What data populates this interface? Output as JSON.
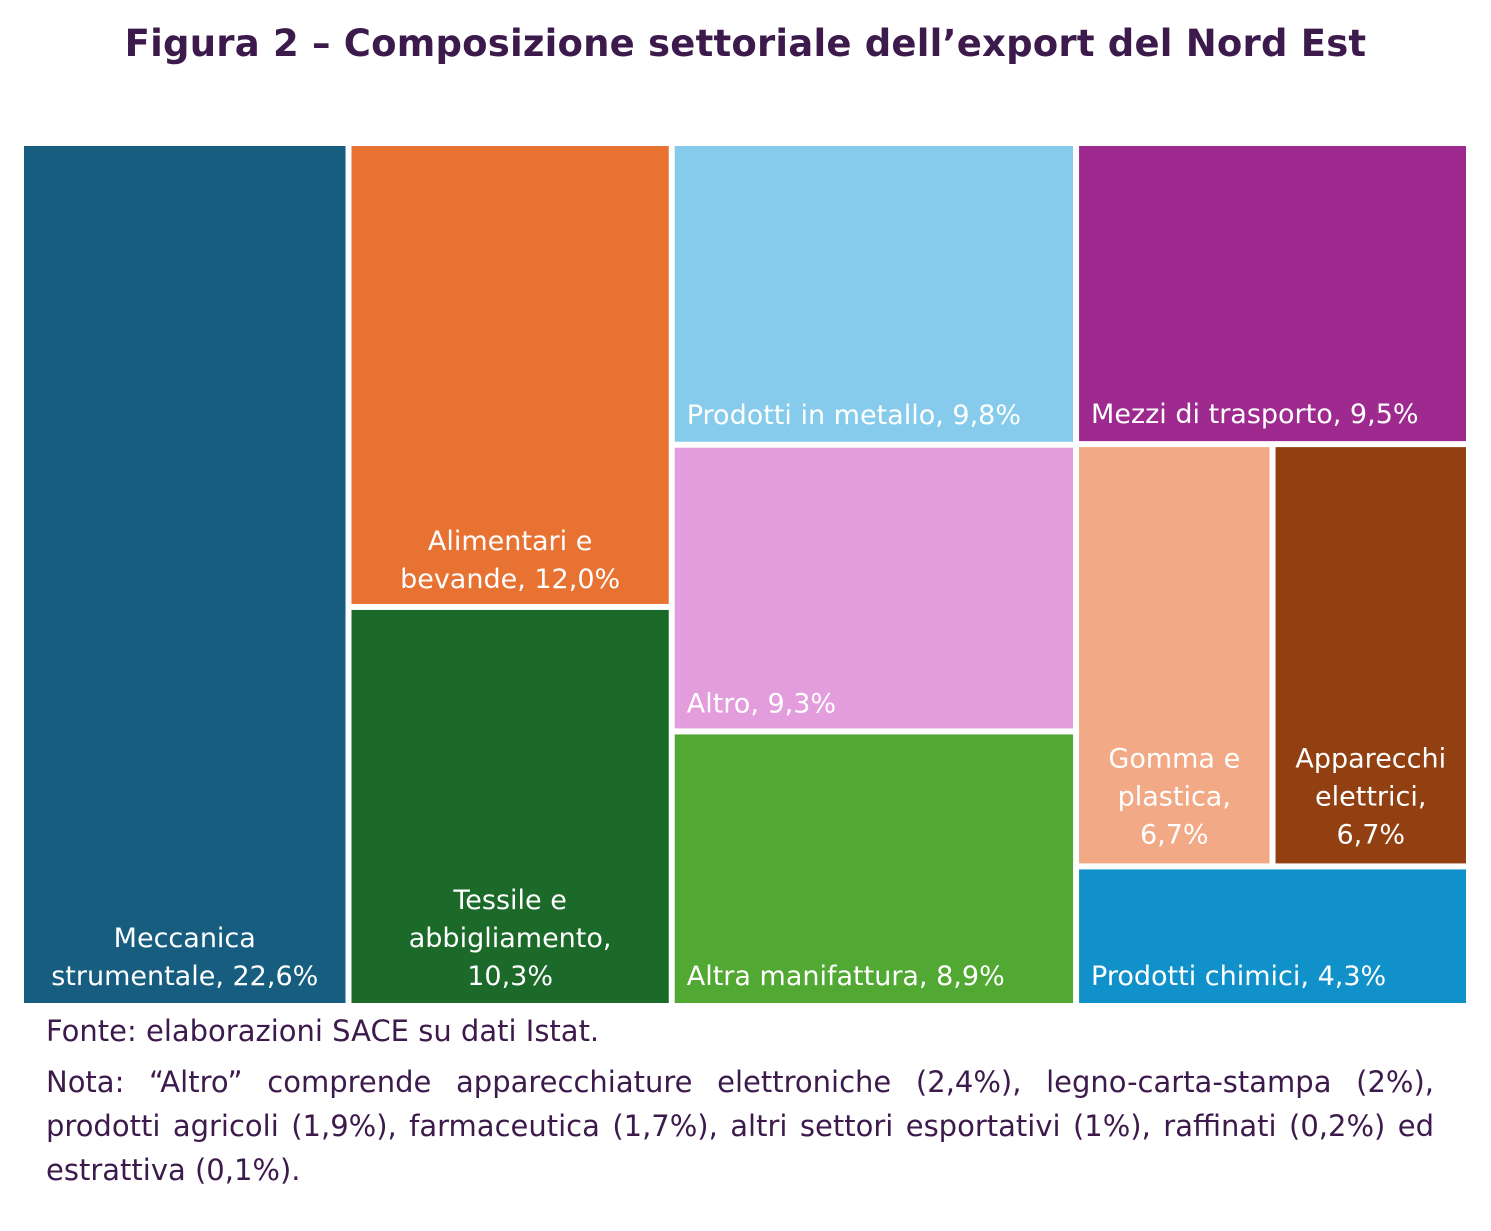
{
  "title": "Figura 2 – Composizione settoriale dell’export del Nord Est",
  "chart_data": {
    "type": "treemap",
    "title": "Figura 2 – Composizione settoriale dell’export del Nord Est",
    "unit": "%",
    "items": [
      {
        "name": "Meccanica strumentale",
        "value": 22.6,
        "label": [
          "Meccanica",
          "strumentale, 22,6%"
        ],
        "color": "#175d80"
      },
      {
        "name": "Alimentari e bevande",
        "value": 12.0,
        "label": [
          "Alimentari e",
          "bevande, 12,0%"
        ],
        "color": "#e87232"
      },
      {
        "name": "Tessile e abbigliamento",
        "value": 10.3,
        "label": [
          "Tessile e",
          "abbigliamento,",
          "10,3%"
        ],
        "color": "#1b6a2a"
      },
      {
        "name": "Prodotti in metallo",
        "value": 9.8,
        "label": [
          "Prodotti in metallo, 9,8%"
        ],
        "color": "#86cbeb"
      },
      {
        "name": "Altro",
        "value": 9.3,
        "label": [
          "Altro, 9,3%"
        ],
        "color": "#e39cdc"
      },
      {
        "name": "Altra manifattura",
        "value": 8.9,
        "label": [
          "Altra manifattura, 8,9%"
        ],
        "color": "#51a832"
      },
      {
        "name": "Mezzi di trasporto",
        "value": 9.5,
        "label": [
          "Mezzi di trasporto, 9,5%"
        ],
        "color": "#9e2a8f"
      },
      {
        "name": "Gomma e plastica",
        "value": 6.7,
        "label": [
          "Gomma e",
          "plastica,",
          "6,7%"
        ],
        "color": "#f2a985"
      },
      {
        "name": "Apparecchi elettrici",
        "value": 6.7,
        "label": [
          "Apparecchi",
          "elettrici,",
          "6,7%"
        ],
        "color": "#924011"
      },
      {
        "name": "Prodotti chimici",
        "value": 4.3,
        "label": [
          "Prodotti chimici, 4,3%"
        ],
        "color": "#1191c9"
      }
    ]
  },
  "footer": {
    "source": "Fonte: elaborazioni SACE su dati Istat.",
    "note": "Nota: “Altro” comprende apparecchiature elettroniche (2,4%), legno-carta-stampa (2%), prodotti agricoli (1,9%), farmaceutica (1,7%), altri settori esportativi (1%), raffinati (0,2%) ed estrattiva (0,1%)."
  }
}
